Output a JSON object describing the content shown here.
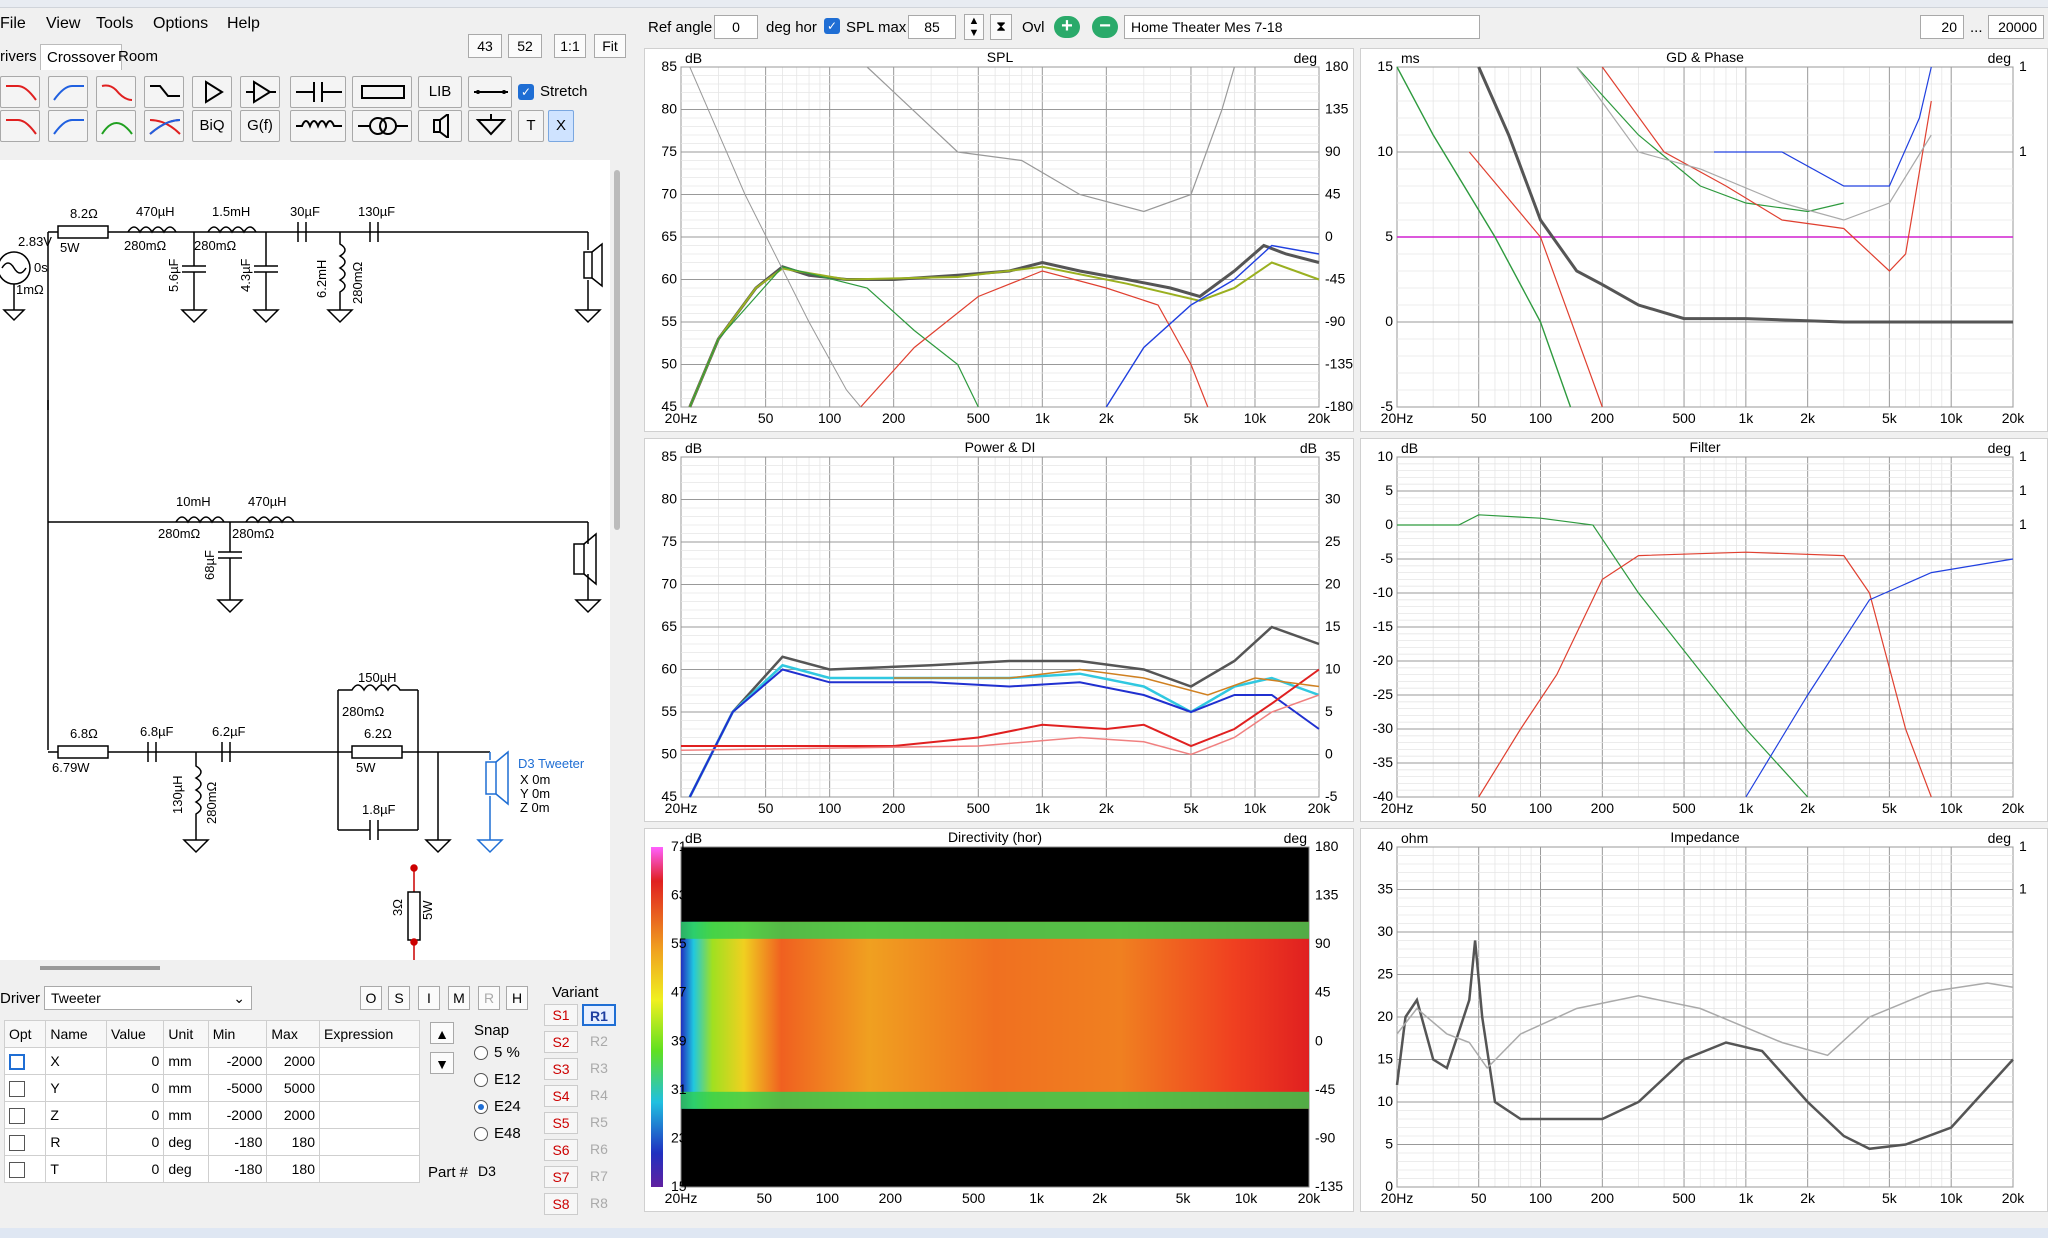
{
  "menu": [
    "File",
    "View",
    "Tools",
    "Options",
    "Help"
  ],
  "tabs": [
    "rivers",
    "Crossover",
    "Room"
  ],
  "top_left": {
    "b1": "43",
    "b2": "52",
    "b3": "1:1",
    "b4": "Fit"
  },
  "toolbar": {
    "lib": "LIB",
    "biq": "BiQ",
    "gf": "G(f)",
    "t": "T",
    "x": "X",
    "stretch": "Stretch"
  },
  "controls": {
    "ref_angle_label": "Ref angle",
    "ref_angle_value": "0",
    "deg_hor": "deg hor",
    "spl_max_label": "SPL max",
    "spl_max_value": "85",
    "ovl": "Ovl",
    "measurement": "Home Theater Mes 7-18",
    "f_low": "20",
    "ellipsis": "...",
    "f_high": "20000"
  },
  "schematic": {
    "labels": {
      "r1": "8.2Ω",
      "r1w": "5W",
      "l1": "470µH",
      "l1r": "280mΩ",
      "l2": "1.5mH",
      "l2r": "280mΩ",
      "c1": "5.6µF",
      "c2": "4.3µF",
      "c3": "30µF",
      "c4": "130µF",
      "l3": "6.2mH",
      "l3r": "280mΩ",
      "src_v": "2.83V",
      "src_t": "0s",
      "src_r": "1mΩ",
      "l4": "10mH",
      "l4r": "280mΩ",
      "l5": "470µH",
      "l5r": "280mΩ",
      "c5": "68µF",
      "r2": "6.8Ω",
      "r2w": "6.79W",
      "c6": "6.8µF",
      "c7": "6.2µF",
      "l6": "130µH",
      "l6r": "280mΩ",
      "l7": "150µH",
      "l7r": "280mΩ",
      "r3": "6.2Ω",
      "r3w": "5W",
      "c8": "1.8µF",
      "r4": "3Ω",
      "r4w": "5W",
      "tw_name": "D3 Tweeter",
      "tw_x": "X 0m",
      "tw_y": "Y 0m",
      "tw_z": "Z 0m"
    }
  },
  "driver_panel": {
    "driver_label": "Driver",
    "driver_value": "Tweeter",
    "buttons": [
      "O",
      "S",
      "I",
      "M",
      "R",
      "H"
    ],
    "columns": [
      "Opt",
      "Name",
      "Value",
      "Unit",
      "Min",
      "Max",
      "Expression"
    ],
    "rows": [
      {
        "name": "X",
        "value": "0",
        "unit": "mm",
        "min": "-2000",
        "max": "2000"
      },
      {
        "name": "Y",
        "value": "0",
        "unit": "mm",
        "min": "-5000",
        "max": "5000"
      },
      {
        "name": "Z",
        "value": "0",
        "unit": "mm",
        "min": "-2000",
        "max": "2000"
      },
      {
        "name": "R",
        "value": "0",
        "unit": "deg",
        "min": "-180",
        "max": "180"
      },
      {
        "name": "T",
        "value": "0",
        "unit": "deg",
        "min": "-180",
        "max": "180"
      }
    ],
    "snap_label": "Snap",
    "snap_options": [
      "5 %",
      "E12",
      "E24",
      "E48"
    ],
    "snap_selected": "E24",
    "part_label": "Part #",
    "part_value": "D3",
    "variant_label": "Variant",
    "variants_s": [
      "S1",
      "S2",
      "S3",
      "S4",
      "S5",
      "S6",
      "S7",
      "S8"
    ],
    "variants_r": [
      "R1",
      "R2",
      "R3",
      "R4",
      "R5",
      "R6",
      "R7",
      "R8"
    ],
    "variant_selected": "R1"
  },
  "charts": {
    "spl": {
      "title": "SPL",
      "yunit": "dB",
      "y2unit": "deg",
      "yticks": [
        "85",
        "80",
        "75",
        "70",
        "65",
        "60",
        "55",
        "50",
        "45"
      ],
      "y2ticks": [
        "180",
        "135",
        "90",
        "45",
        "0",
        "-45",
        "-90",
        "-135",
        "-180"
      ]
    },
    "gd": {
      "title": "GD & Phase",
      "yunit": "ms",
      "y2unit": "deg",
      "yticks": [
        "15",
        "10",
        "5",
        "0",
        "-5"
      ],
      "y2ticks": [
        "1",
        "1",
        "",
        "",
        ""
      ]
    },
    "power": {
      "title": "Power & DI",
      "yunit": "dB",
      "y2unit": "dB",
      "yticks": [
        "85",
        "80",
        "75",
        "70",
        "65",
        "60",
        "55",
        "50",
        "45"
      ],
      "y2ticks": [
        "35",
        "30",
        "25",
        "20",
        "15",
        "10",
        "5",
        "0",
        "-5"
      ]
    },
    "filter": {
      "title": "Filter",
      "yunit": "dB",
      "y2unit": "deg",
      "yticks": [
        "10",
        "5",
        "0",
        "-5",
        "-10",
        "-15",
        "-20",
        "-25",
        "-30",
        "-35",
        "-40"
      ],
      "y2ticks": [
        "1",
        "1",
        "1",
        "",
        "",
        "",
        "",
        "",
        "",
        "",
        ""
      ]
    },
    "dir": {
      "title": "Directivity (hor)",
      "yunit": "dB",
      "y2unit": "deg",
      "scale": [
        "71",
        "63",
        "55",
        "47",
        "39",
        "31",
        "23",
        "15"
      ],
      "y2ticks": [
        "180",
        "135",
        "90",
        "45",
        "0",
        "-45",
        "-90",
        "-135",
        "-180"
      ]
    },
    "imp": {
      "title": "Impedance",
      "yunit": "ohm",
      "y2unit": "deg",
      "yticks": [
        "40",
        "35",
        "30",
        "25",
        "20",
        "15",
        "10",
        "5",
        "0"
      ],
      "y2ticks": [
        "1",
        "1",
        "",
        "",
        "",
        "",
        "",
        "",
        ""
      ]
    },
    "xticks": [
      "20Hz",
      "50",
      "100",
      "200",
      "500",
      "1k",
      "2k",
      "5k",
      "10k",
      "20k"
    ]
  },
  "colors": {
    "accent": "#1f6ed4",
    "grid": "#c8c8c8",
    "gridMinor": "#e6e6e6"
  }
}
